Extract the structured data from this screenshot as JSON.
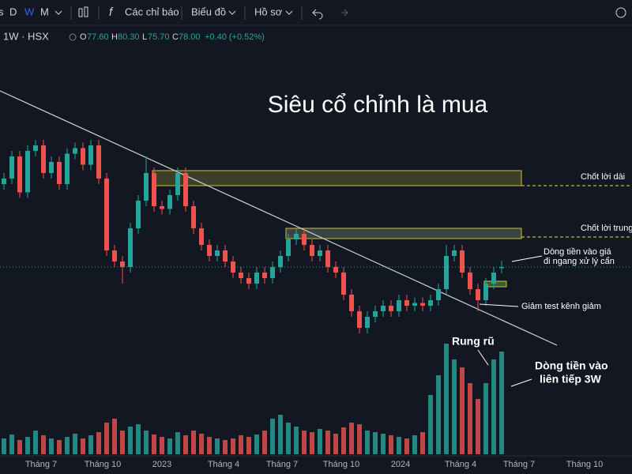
{
  "toolbar": {
    "intervals": [
      "D",
      "W",
      "M"
    ],
    "indicators": "Các chỉ báo",
    "chart": "Biểu đồ",
    "profile": "Hồ sơ"
  },
  "legend": {
    "symbol": "1W · HSX",
    "o_label": "O",
    "o": "77.60",
    "h_label": "H",
    "h": "80.30",
    "l_label": "L",
    "l": "75.70",
    "c_label": "C",
    "c": "78.00",
    "change": "+0.40 (+0.52%)"
  },
  "title": "Siêu cổ chỉnh là mua",
  "annotations": {
    "take_profit_long": "Chốt lời dài",
    "take_profit_mid": "Chốt lời trung",
    "money_flow_1": "Dòng tiền vào giá",
    "money_flow_2": "đi ngang xử lý cẩn",
    "test_channel": "Giảm test kênh giảm",
    "shakeout": "Rung rũ",
    "money_flow_3w_1": "Dòng tiền vào",
    "money_flow_3w_2": "liên tiếp 3W"
  },
  "x_labels": [
    "Tháng 7",
    "Tháng 10",
    "2023",
    "Tháng 4",
    "Tháng 7",
    "Tháng 10",
    "2024",
    "Tháng 4",
    "Tháng 7",
    "Tháng 10"
  ],
  "candles": {
    "open": [
      108,
      110,
      118,
      105,
      120,
      122,
      112,
      116,
      108,
      119,
      121,
      115,
      122,
      110,
      84,
      80,
      78,
      92,
      102,
      112,
      100,
      99,
      104,
      112,
      100,
      92,
      86,
      82,
      84,
      80,
      76,
      74,
      72,
      76,
      74,
      78,
      82,
      88,
      90,
      86,
      82,
      84,
      78,
      76,
      68,
      62,
      56,
      60,
      62,
      64,
      62,
      66,
      64,
      65,
      64,
      66,
      70,
      82,
      84,
      76,
      70,
      66,
      72,
      77.6
    ],
    "high": [
      112,
      120,
      120,
      122,
      124,
      124,
      118,
      118,
      121,
      123,
      123,
      124,
      124,
      112,
      86,
      82,
      94,
      104,
      118,
      114,
      102,
      106,
      114,
      114,
      102,
      94,
      88,
      86,
      86,
      82,
      78,
      76,
      78,
      78,
      80,
      84,
      90,
      92,
      92,
      88,
      86,
      86,
      80,
      78,
      70,
      64,
      62,
      64,
      66,
      66,
      68,
      68,
      67,
      67,
      68,
      72,
      86,
      86,
      86,
      78,
      72,
      74,
      78,
      80.3
    ],
    "low": [
      106,
      108,
      103,
      103,
      118,
      110,
      110,
      106,
      106,
      117,
      113,
      113,
      108,
      82,
      78,
      72,
      76,
      90,
      100,
      98,
      97,
      97,
      102,
      98,
      90,
      84,
      80,
      80,
      78,
      74,
      72,
      70,
      70,
      72,
      72,
      76,
      80,
      86,
      84,
      80,
      80,
      76,
      74,
      66,
      60,
      54,
      54,
      58,
      60,
      60,
      60,
      62,
      62,
      62,
      62,
      64,
      68,
      80,
      74,
      68,
      62,
      64,
      70,
      75.7
    ],
    "close": [
      110,
      118,
      105,
      120,
      122,
      112,
      116,
      108,
      119,
      121,
      115,
      122,
      110,
      84,
      80,
      78,
      92,
      102,
      112,
      100,
      99,
      104,
      112,
      100,
      92,
      86,
      82,
      84,
      80,
      76,
      74,
      72,
      76,
      74,
      78,
      82,
      88,
      90,
      86,
      82,
      84,
      78,
      76,
      68,
      62,
      56,
      60,
      62,
      64,
      62,
      66,
      64,
      65,
      64,
      66,
      70,
      82,
      84,
      76,
      70,
      66,
      72,
      76,
      78
    ],
    "volume": [
      20,
      25,
      18,
      22,
      30,
      24,
      20,
      18,
      22,
      26,
      20,
      24,
      28,
      40,
      45,
      30,
      35,
      38,
      30,
      25,
      22,
      20,
      28,
      24,
      30,
      26,
      22,
      20,
      18,
      20,
      24,
      22,
      25,
      30,
      45,
      50,
      40,
      35,
      30,
      28,
      32,
      30,
      26,
      34,
      40,
      38,
      30,
      28,
      26,
      24,
      22,
      20,
      24,
      28,
      75,
      100,
      140,
      120,
      110,
      90,
      70,
      90,
      120,
      130
    ]
  }
}
